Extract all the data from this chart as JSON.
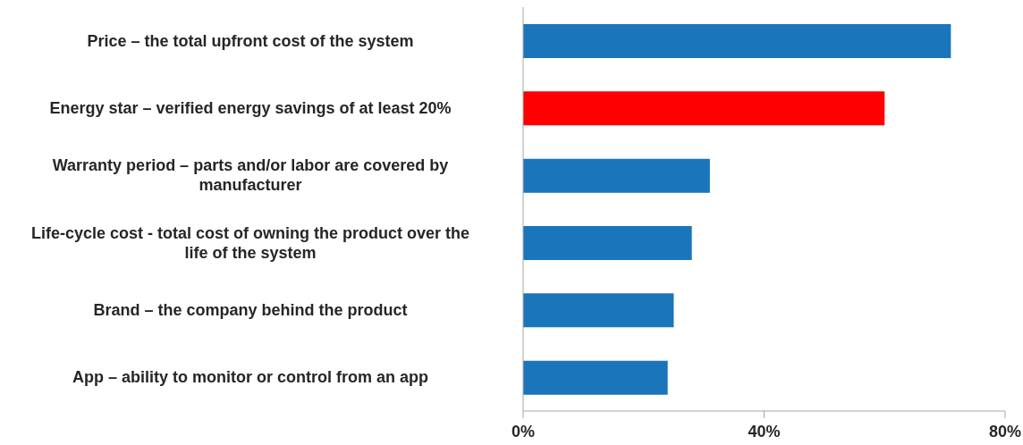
{
  "chart_data": {
    "type": "bar",
    "orientation": "horizontal",
    "categories": [
      "Price – the total upfront cost of the system",
      "Energy star – verified energy savings of at least 20%",
      "Warranty period – parts and/or labor are covered by manufacturer",
      "Life-cycle cost - total cost of owning the product over the life of the system",
      "Brand – the company behind the product",
      "App – ability to monitor or control from an app"
    ],
    "values": [
      71,
      60,
      31,
      28,
      25,
      24
    ],
    "colors": [
      "#1b75bb",
      "#ff0000",
      "#1b75bb",
      "#1b75bb",
      "#1b75bb",
      "#1b75bb"
    ],
    "xlim": [
      0,
      80
    ],
    "xticks": [
      {
        "value": 0,
        "label": "0%"
      },
      {
        "value": 40,
        "label": "40%"
      },
      {
        "value": 80,
        "label": "80%"
      }
    ],
    "grid": false,
    "legend": false
  }
}
